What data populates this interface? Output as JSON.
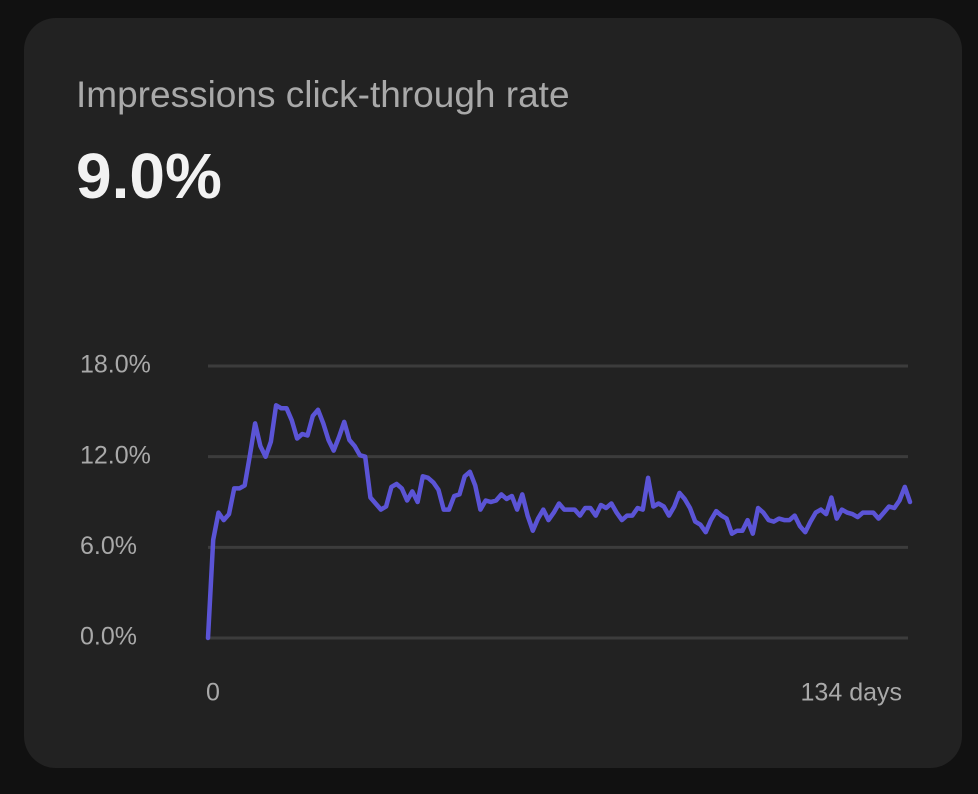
{
  "chart_data": {
    "type": "line",
    "title": "Impressions click-through rate",
    "headline": "9.0%",
    "color": "#5b54d6",
    "grid": true,
    "xlim": [
      0,
      134
    ],
    "xticks": [
      0,
      {
        "value": 134,
        "label": "134 days"
      }
    ],
    "ylim": [
      0,
      18
    ],
    "yticks": [
      {
        "value": 0,
        "label": "0.0%"
      },
      {
        "value": 6,
        "label": "6.0%"
      },
      {
        "value": 12,
        "label": "12.0%"
      },
      {
        "value": 18,
        "label": "18.0%"
      }
    ],
    "values": [
      0,
      6.5,
      8.3,
      7.8,
      8.2,
      9.9,
      9.9,
      10.1,
      12.1,
      14.2,
      12.7,
      12.0,
      13.0,
      15.4,
      15.2,
      15.2,
      14.4,
      13.2,
      13.5,
      13.4,
      14.7,
      15.1,
      14.2,
      13.1,
      12.4,
      13.3,
      14.3,
      13.1,
      12.7,
      12.1,
      12.0,
      9.3,
      8.9,
      8.5,
      8.7,
      10.0,
      10.2,
      9.9,
      9.1,
      9.7,
      9.0,
      10.7,
      10.6,
      10.3,
      9.8,
      8.5,
      8.5,
      9.4,
      9.5,
      10.7,
      11.0,
      10.1,
      8.5,
      9.1,
      9.0,
      9.1,
      9.5,
      9.2,
      9.4,
      8.5,
      9.5,
      8.1,
      7.1,
      7.9,
      8.5,
      7.8,
      8.3,
      8.9,
      8.5,
      8.5,
      8.5,
      8.1,
      8.6,
      8.6,
      8.1,
      8.8,
      8.6,
      8.9,
      8.3,
      7.8,
      8.1,
      8.1,
      8.6,
      8.5,
      10.6,
      8.7,
      8.9,
      8.7,
      8.1,
      8.7,
      9.6,
      9.2,
      8.6,
      7.7,
      7.5,
      7.0,
      7.8,
      8.4,
      8.1,
      7.9,
      6.9,
      7.1,
      7.1,
      7.8,
      6.9,
      8.6,
      8.3,
      7.8,
      7.7,
      7.9,
      7.8,
      7.8,
      8.1,
      7.4,
      7.0,
      7.7,
      8.3,
      8.5,
      8.2,
      9.3,
      7.9,
      8.5,
      8.3,
      8.2,
      8.0,
      8.3,
      8.3,
      8.3,
      7.9,
      8.3,
      8.7,
      8.6,
      9.1,
      10.0,
      9.0
    ]
  }
}
